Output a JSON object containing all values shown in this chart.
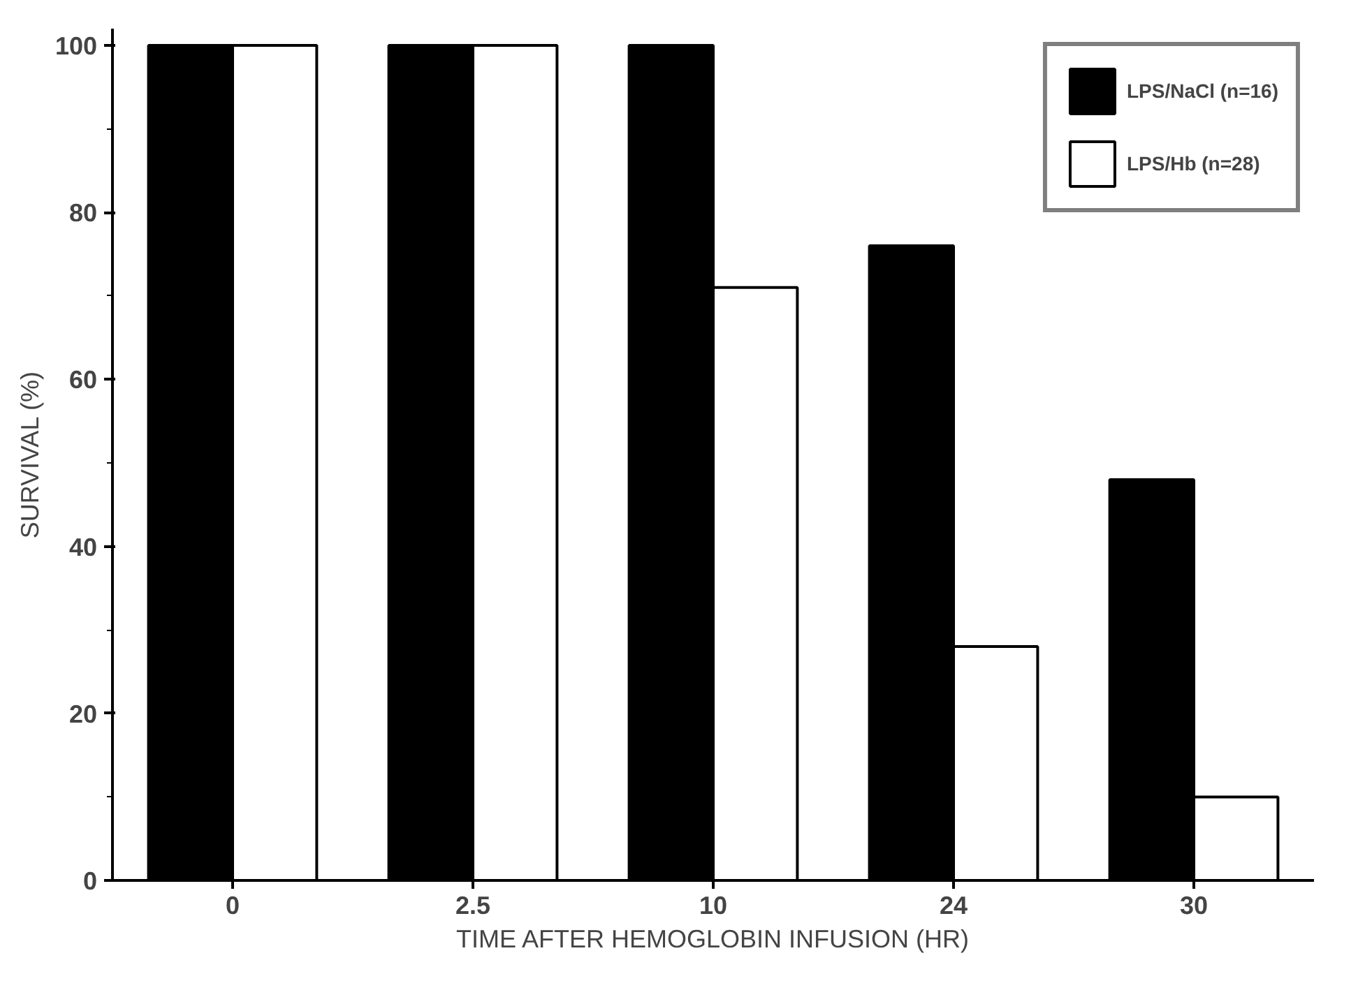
{
  "chart_data": {
    "type": "bar",
    "xlabel": "TIME AFTER HEMOGLOBIN INFUSION (HR)",
    "ylabel": "SURVIVAL (%)",
    "categories": [
      "0",
      "2.5",
      "10",
      "24",
      "30"
    ],
    "series": [
      {
        "name": "LPS/NaCl (n=16)",
        "color": "#000000",
        "values": [
          100,
          100,
          100,
          76,
          48
        ]
      },
      {
        "name": "LPS/Hb (n=28)",
        "color": "#ffffff",
        "values": [
          100,
          100,
          71,
          28,
          10
        ]
      }
    ],
    "ylim": [
      0,
      100
    ],
    "yticks": [
      0,
      20,
      40,
      60,
      80,
      100
    ],
    "grid": false,
    "legend": "top right"
  }
}
